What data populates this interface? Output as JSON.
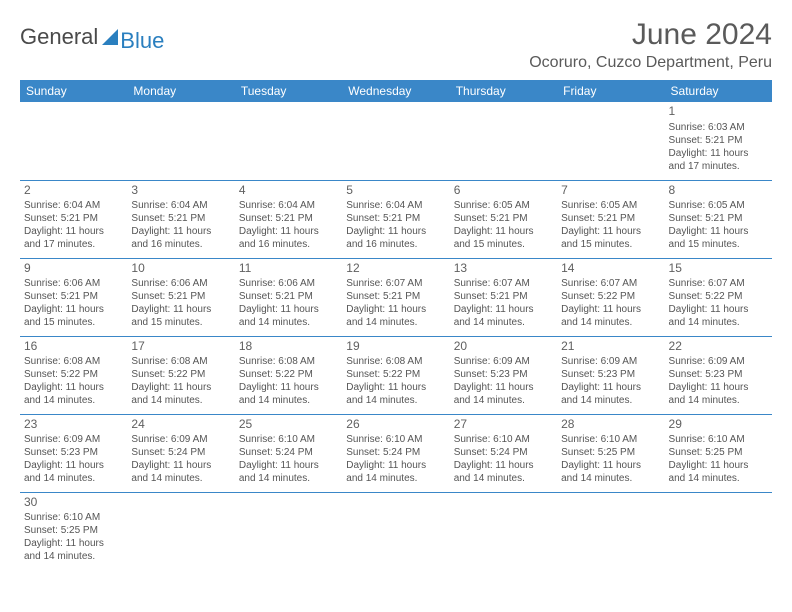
{
  "logo": {
    "general": "General",
    "blue": "Blue"
  },
  "title": "June 2024",
  "location": "Ocoruro, Cuzco Department, Peru",
  "colors": {
    "header_bg": "#3a87c8",
    "header_text": "#ffffff",
    "text": "#555555",
    "border": "#3a87c8",
    "logo_blue": "#2a7fbf",
    "logo_gray": "#4a4a4a"
  },
  "weekdays": [
    "Sunday",
    "Monday",
    "Tuesday",
    "Wednesday",
    "Thursday",
    "Friday",
    "Saturday"
  ],
  "weeks": [
    [
      null,
      null,
      null,
      null,
      null,
      null,
      {
        "n": "1",
        "sr": "6:03 AM",
        "ss": "5:21 PM",
        "dl1": "11 hours",
        "dl2": "and 17 minutes."
      }
    ],
    [
      {
        "n": "2",
        "sr": "6:04 AM",
        "ss": "5:21 PM",
        "dl1": "11 hours",
        "dl2": "and 17 minutes."
      },
      {
        "n": "3",
        "sr": "6:04 AM",
        "ss": "5:21 PM",
        "dl1": "11 hours",
        "dl2": "and 16 minutes."
      },
      {
        "n": "4",
        "sr": "6:04 AM",
        "ss": "5:21 PM",
        "dl1": "11 hours",
        "dl2": "and 16 minutes."
      },
      {
        "n": "5",
        "sr": "6:04 AM",
        "ss": "5:21 PM",
        "dl1": "11 hours",
        "dl2": "and 16 minutes."
      },
      {
        "n": "6",
        "sr": "6:05 AM",
        "ss": "5:21 PM",
        "dl1": "11 hours",
        "dl2": "and 15 minutes."
      },
      {
        "n": "7",
        "sr": "6:05 AM",
        "ss": "5:21 PM",
        "dl1": "11 hours",
        "dl2": "and 15 minutes."
      },
      {
        "n": "8",
        "sr": "6:05 AM",
        "ss": "5:21 PM",
        "dl1": "11 hours",
        "dl2": "and 15 minutes."
      }
    ],
    [
      {
        "n": "9",
        "sr": "6:06 AM",
        "ss": "5:21 PM",
        "dl1": "11 hours",
        "dl2": "and 15 minutes."
      },
      {
        "n": "10",
        "sr": "6:06 AM",
        "ss": "5:21 PM",
        "dl1": "11 hours",
        "dl2": "and 15 minutes."
      },
      {
        "n": "11",
        "sr": "6:06 AM",
        "ss": "5:21 PM",
        "dl1": "11 hours",
        "dl2": "and 14 minutes."
      },
      {
        "n": "12",
        "sr": "6:07 AM",
        "ss": "5:21 PM",
        "dl1": "11 hours",
        "dl2": "and 14 minutes."
      },
      {
        "n": "13",
        "sr": "6:07 AM",
        "ss": "5:21 PM",
        "dl1": "11 hours",
        "dl2": "and 14 minutes."
      },
      {
        "n": "14",
        "sr": "6:07 AM",
        "ss": "5:22 PM",
        "dl1": "11 hours",
        "dl2": "and 14 minutes."
      },
      {
        "n": "15",
        "sr": "6:07 AM",
        "ss": "5:22 PM",
        "dl1": "11 hours",
        "dl2": "and 14 minutes."
      }
    ],
    [
      {
        "n": "16",
        "sr": "6:08 AM",
        "ss": "5:22 PM",
        "dl1": "11 hours",
        "dl2": "and 14 minutes."
      },
      {
        "n": "17",
        "sr": "6:08 AM",
        "ss": "5:22 PM",
        "dl1": "11 hours",
        "dl2": "and 14 minutes."
      },
      {
        "n": "18",
        "sr": "6:08 AM",
        "ss": "5:22 PM",
        "dl1": "11 hours",
        "dl2": "and 14 minutes."
      },
      {
        "n": "19",
        "sr": "6:08 AM",
        "ss": "5:22 PM",
        "dl1": "11 hours",
        "dl2": "and 14 minutes."
      },
      {
        "n": "20",
        "sr": "6:09 AM",
        "ss": "5:23 PM",
        "dl1": "11 hours",
        "dl2": "and 14 minutes."
      },
      {
        "n": "21",
        "sr": "6:09 AM",
        "ss": "5:23 PM",
        "dl1": "11 hours",
        "dl2": "and 14 minutes."
      },
      {
        "n": "22",
        "sr": "6:09 AM",
        "ss": "5:23 PM",
        "dl1": "11 hours",
        "dl2": "and 14 minutes."
      }
    ],
    [
      {
        "n": "23",
        "sr": "6:09 AM",
        "ss": "5:23 PM",
        "dl1": "11 hours",
        "dl2": "and 14 minutes."
      },
      {
        "n": "24",
        "sr": "6:09 AM",
        "ss": "5:24 PM",
        "dl1": "11 hours",
        "dl2": "and 14 minutes."
      },
      {
        "n": "25",
        "sr": "6:10 AM",
        "ss": "5:24 PM",
        "dl1": "11 hours",
        "dl2": "and 14 minutes."
      },
      {
        "n": "26",
        "sr": "6:10 AM",
        "ss": "5:24 PM",
        "dl1": "11 hours",
        "dl2": "and 14 minutes."
      },
      {
        "n": "27",
        "sr": "6:10 AM",
        "ss": "5:24 PM",
        "dl1": "11 hours",
        "dl2": "and 14 minutes."
      },
      {
        "n": "28",
        "sr": "6:10 AM",
        "ss": "5:25 PM",
        "dl1": "11 hours",
        "dl2": "and 14 minutes."
      },
      {
        "n": "29",
        "sr": "6:10 AM",
        "ss": "5:25 PM",
        "dl1": "11 hours",
        "dl2": "and 14 minutes."
      }
    ],
    [
      {
        "n": "30",
        "sr": "6:10 AM",
        "ss": "5:25 PM",
        "dl1": "11 hours",
        "dl2": "and 14 minutes."
      },
      null,
      null,
      null,
      null,
      null,
      null
    ]
  ],
  "labels": {
    "sunrise": "Sunrise: ",
    "sunset": "Sunset: ",
    "daylight": "Daylight: "
  }
}
